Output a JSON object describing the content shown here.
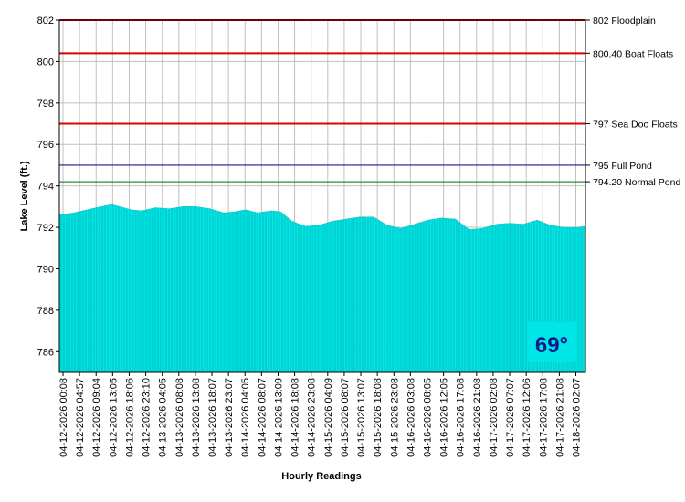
{
  "chart_data": {
    "type": "bar",
    "title": "",
    "xlabel": "Hourly Readings",
    "ylabel": "Lake Level (ft.)",
    "ylim": [
      785,
      802
    ],
    "yticks": [
      786,
      788,
      790,
      792,
      794,
      796,
      798,
      800,
      802
    ],
    "grid": true,
    "bar_color": "#00e5e5",
    "x_tick_labels": [
      "04-12-2026 00:08",
      "04-12-2026 04:57",
      "04-12-2026 09:04",
      "04-12-2026 13:05",
      "04-12-2026 18:06",
      "04-12-2026 23:10",
      "04-13-2026 04:05",
      "04-13-2026 08:08",
      "04-13-2026 13:08",
      "04-13-2026 18:07",
      "04-13-2026 23:07",
      "04-14-2026 04:05",
      "04-14-2026 08:07",
      "04-14-2026 13:09",
      "04-14-2026 18:08",
      "04-14-2026 23:08",
      "04-15-2026 04:09",
      "04-15-2026 08:07",
      "04-15-2026 13:07",
      "04-15-2026 18:08",
      "04-15-2026 23:08",
      "04-16-2026 03:08",
      "04-16-2026 08:05",
      "04-16-2026 12:05",
      "04-16-2026 17:08",
      "04-16-2026 21:08",
      "04-17-2026 02:08",
      "04-17-2026 07:07",
      "04-17-2026 12:06",
      "04-17-2026 17:08",
      "04-17-2026 21:08",
      "04-18-2026 02:07"
    ],
    "level_profile": [
      [
        0,
        792.6
      ],
      [
        10,
        792.7
      ],
      [
        20,
        792.85
      ],
      [
        30,
        793.0
      ],
      [
        38,
        793.1
      ],
      [
        44,
        793.0
      ],
      [
        52,
        792.85
      ],
      [
        60,
        792.8
      ],
      [
        70,
        792.95
      ],
      [
        80,
        792.9
      ],
      [
        90,
        793.0
      ],
      [
        100,
        793.0
      ],
      [
        110,
        792.9
      ],
      [
        120,
        792.7
      ],
      [
        128,
        792.75
      ],
      [
        136,
        792.85
      ],
      [
        145,
        792.7
      ],
      [
        155,
        792.8
      ],
      [
        162,
        792.75
      ],
      [
        170,
        792.3
      ],
      [
        180,
        792.05
      ],
      [
        190,
        792.1
      ],
      [
        200,
        792.3
      ],
      [
        210,
        792.4
      ],
      [
        220,
        792.5
      ],
      [
        230,
        792.5
      ],
      [
        240,
        792.1
      ],
      [
        250,
        791.95
      ],
      [
        260,
        792.15
      ],
      [
        270,
        792.35
      ],
      [
        280,
        792.45
      ],
      [
        290,
        792.4
      ],
      [
        300,
        791.9
      ],
      [
        310,
        791.95
      ],
      [
        320,
        792.15
      ],
      [
        330,
        792.2
      ],
      [
        340,
        792.15
      ],
      [
        350,
        792.35
      ],
      [
        360,
        792.1
      ],
      [
        370,
        792.0
      ],
      [
        380,
        792.0
      ],
      [
        385,
        792.05
      ]
    ],
    "reference_lines": [
      {
        "value": 802,
        "label": "802 Floodplain",
        "color": "#e00000"
      },
      {
        "value": 800.4,
        "label": "800.40 Boat Floats",
        "color": "#e00000"
      },
      {
        "value": 797,
        "label": "797 Sea Doo Floats",
        "color": "#e00000"
      },
      {
        "value": 795,
        "label": "795 Full Pond",
        "color": "#1a1a8c"
      },
      {
        "value": 794.2,
        "label": "794.20 Normal Pond",
        "color": "#2e8b2e"
      }
    ],
    "temperature": "69°"
  }
}
